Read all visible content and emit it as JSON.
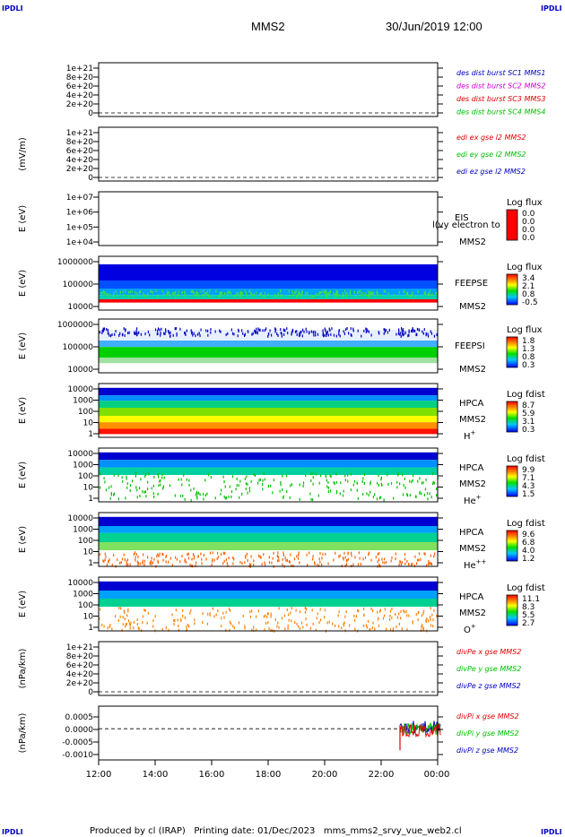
{
  "corner_labels": [
    "IPDLI",
    "IPDLI",
    "IPDLI",
    "IPDLI"
  ],
  "header": {
    "spacecraft": "MMS2",
    "date_time": "30/Jun/2019 12:00"
  },
  "footer": {
    "text": "Produced by cl (IRAP)   Printing date: 01/Dec/2023   mms_mms2_srvy_vue_web2.cl"
  },
  "chart_data": {
    "type": "multi-panel time series",
    "x_ticks": [
      "12:00",
      "14:00",
      "16:00",
      "18:00",
      "20:00",
      "22:00",
      "00:00"
    ],
    "colors": {
      "red": "#e00000",
      "green": "#00c000",
      "blue": "#0000c0",
      "magenta": "#d000d0"
    },
    "panels": [
      {
        "id": "dist",
        "type": "line",
        "ylabel": "",
        "ytick_labels": [
          "1e+21",
          "8e+20",
          "6e+20",
          "4e+20",
          "2e+20",
          "0"
        ],
        "legend": [
          {
            "text": "des dist burst SC1 MMS1",
            "color": "#0000c0"
          },
          {
            "text": "des dist burst SC2 MMS2",
            "color": "#d000d0"
          },
          {
            "text": "des dist burst SC3 MMS3",
            "color": "#e00000"
          },
          {
            "text": "des dist burst SC4 MMS4",
            "color": "#00c000"
          }
        ]
      },
      {
        "id": "edi",
        "type": "line",
        "ylabel": "(mV/m)",
        "ytick_labels": [
          "1e+21",
          "8e+20",
          "6e+20",
          "4e+20",
          "2e+20",
          "0"
        ],
        "legend": [
          {
            "text": "edi ex gse l2 MMS2",
            "color": "#e00000"
          },
          {
            "text": "edi ey gse l2 MMS2",
            "color": "#00c000"
          },
          {
            "text": "edi ez gse l2 MMS2",
            "color": "#0000c0"
          }
        ]
      },
      {
        "id": "eis",
        "type": "spectrogram",
        "ylabel": "E (eV)",
        "ytick_labels": [
          "1e+07",
          "1e+06",
          "1e+05",
          "1e+04"
        ],
        "instrument": "EIS",
        "sc": "MMS2",
        "overlay_text": "l(vy electron to",
        "colorbar": {
          "title": "Log flux",
          "ticks": [
            "0.0",
            "0.0",
            "0.0",
            "0.0"
          ]
        }
      },
      {
        "id": "feepse",
        "type": "spectrogram",
        "ylabel": "E (eV)",
        "ytick_labels": [
          "1000000",
          "100000",
          "10000"
        ],
        "instrument": "FEEPSE",
        "sc": "MMS2",
        "colorbar": {
          "title": "Log flux",
          "ticks": [
            "3.4",
            "2.1",
            "0.8",
            "-0.5"
          ]
        }
      },
      {
        "id": "feepsi",
        "type": "spectrogram",
        "ylabel": "E (eV)",
        "ytick_labels": [
          "1000000",
          "100000",
          "10000"
        ],
        "instrument": "FEEPSI",
        "sc": "MMS2",
        "colorbar": {
          "title": "Log flux",
          "ticks": [
            "1.8",
            "1.3",
            "0.8",
            "0.3"
          ]
        }
      },
      {
        "id": "hpca_h",
        "type": "spectrogram",
        "ylabel": "E (eV)",
        "ytick_labels": [
          "10000",
          "1000",
          "100",
          "10",
          "1"
        ],
        "instrument": "HPCA",
        "sc": "MMS2",
        "species": "H",
        "charge": "+",
        "colorbar": {
          "title": "Log fdist",
          "ticks": [
            "8.7",
            "5.9",
            "3.1",
            "0.3"
          ]
        }
      },
      {
        "id": "hpca_he",
        "type": "spectrogram",
        "ylabel": "E (eV)",
        "ytick_labels": [
          "10000",
          "1000",
          "100",
          "10",
          "1"
        ],
        "instrument": "HPCA",
        "sc": "MMS2",
        "species": "He",
        "charge": "+",
        "colorbar": {
          "title": "Log fdist",
          "ticks": [
            "9.9",
            "7.1",
            "4.3",
            "1.5"
          ]
        }
      },
      {
        "id": "hpca_hepp",
        "type": "spectrogram",
        "ylabel": "E (eV)",
        "ytick_labels": [
          "10000",
          "1000",
          "100",
          "10",
          "1"
        ],
        "instrument": "HPCA",
        "sc": "MMS2",
        "species": "He",
        "charge": "++",
        "colorbar": {
          "title": "Log fdist",
          "ticks": [
            "9.6",
            "6.8",
            "4.0",
            "1.2"
          ]
        }
      },
      {
        "id": "hpca_o",
        "type": "spectrogram",
        "ylabel": "E (eV)",
        "ytick_labels": [
          "10000",
          "1000",
          "100",
          "10",
          "1"
        ],
        "instrument": "HPCA",
        "sc": "MMS2",
        "species": "O",
        "charge": "+",
        "colorbar": {
          "title": "Log fdist",
          "ticks": [
            "11.1",
            "8.3",
            "5.5",
            "2.7"
          ]
        }
      },
      {
        "id": "divpe",
        "type": "line",
        "ylabel": "(nPa/km)",
        "ytick_labels": [
          "1e+21",
          "8e+20",
          "6e+20",
          "4e+20",
          "2e+20",
          "0"
        ],
        "legend": [
          {
            "text": "divPe x gse MMS2",
            "color": "#e00000"
          },
          {
            "text": "divPe y gse MMS2",
            "color": "#00c000"
          },
          {
            "text": "divPe z gse MMS2",
            "color": "#0000c0"
          }
        ]
      },
      {
        "id": "divpi",
        "type": "line",
        "ylabel": "(nPa/km)",
        "ytick_labels": [
          "0.0005",
          "0.0000",
          "-0.0005",
          "-0.0010"
        ],
        "legend": [
          {
            "text": "divPi x gse MMS2",
            "color": "#e00000"
          },
          {
            "text": "divPi y gse MMS2",
            "color": "#00c000"
          },
          {
            "text": "divPi z gse MMS2",
            "color": "#0000c0"
          }
        ]
      }
    ]
  }
}
